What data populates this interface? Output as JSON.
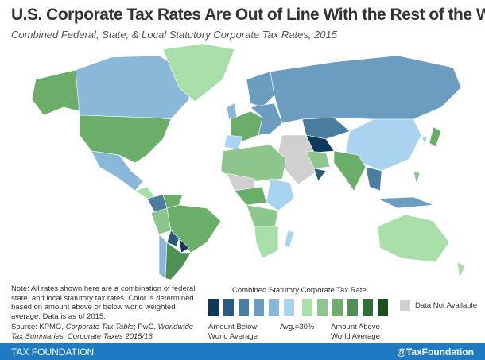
{
  "header": {
    "title": "U.S. Corporate Tax Rates Are Out of Line With the Rest of the World",
    "subtitle": "Combined Federal, State, & Local Statutory Corporate Tax Rates, 2015"
  },
  "note": "Note: All rates shown here are a combination of federal, state, and local statutory tax rates. Color is determined based on amount above or below world weighted average. Data is as of 2015.",
  "source": {
    "prefix": "Source:  KPMG, ",
    "kpmg_title": "Corporate Tax Table",
    "mid": "; PwC, ",
    "pwc_title": "Worldwide Tax Summaries: Corporate Taxes 2015/16"
  },
  "legend": {
    "title": "Combined Statutory Corporate Tax Rate",
    "below_label": "Amount Below World Average",
    "avg_label": "Avg.=30%",
    "above_label": "Amount Above World Average",
    "na_label": "Data Not Available",
    "below_colors": [
      "#0d3a5c",
      "#2a5a80",
      "#4a7da0",
      "#6a9dc0",
      "#8ab8d8",
      "#a9d4ef"
    ],
    "above_colors": [
      "#a8dfa8",
      "#8cc68c",
      "#6aae6a",
      "#4e9055",
      "#326f38",
      "#1a4f22"
    ],
    "na_color": "#d0d0d0"
  },
  "footer": {
    "brand": "TAX FOUNDATION",
    "handle": "@TaxFoundation"
  }
}
